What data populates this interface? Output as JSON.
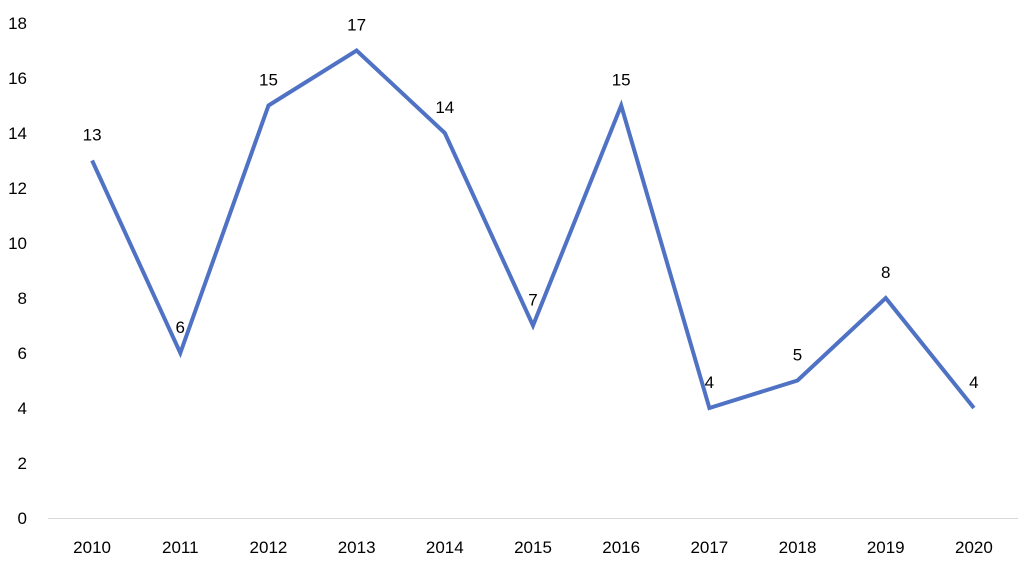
{
  "chart_data": {
    "type": "line",
    "title": "",
    "xlabel": "",
    "ylabel": "",
    "categories": [
      "2010",
      "2011",
      "2012",
      "2013",
      "2014",
      "2015",
      "2016",
      "2017",
      "2018",
      "2019",
      "2020"
    ],
    "series": [
      {
        "values": [
          13,
          6,
          15,
          17,
          14,
          7,
          15,
          4,
          5,
          8,
          4
        ],
        "color": "#4f72c4"
      }
    ],
    "ylim": [
      0,
      18
    ],
    "yticks": [
      "0",
      "2",
      "4",
      "6",
      "8",
      "10",
      "12",
      "14",
      "16",
      "18"
    ],
    "data_labels": [
      "13",
      "6",
      "15",
      "17",
      "14",
      "7",
      "15",
      "4",
      "5",
      "8",
      "4"
    ],
    "grid": false,
    "legend": "none",
    "axis_color": "#d9d9d9"
  }
}
